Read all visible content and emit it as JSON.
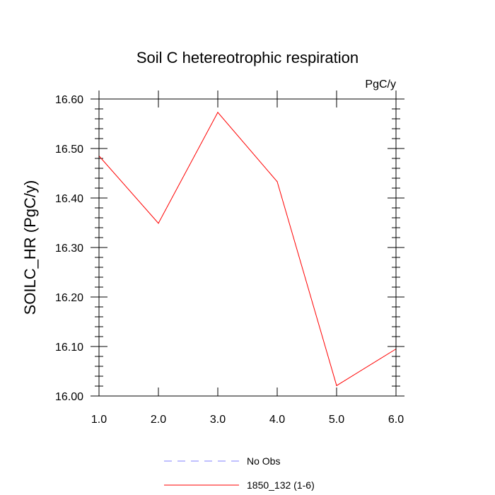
{
  "chart_data": {
    "type": "line",
    "title": "Soil C hetereotrophic respiration",
    "units_label": "PgC/y",
    "xlabel": "",
    "ylabel": "SOILC_HR  (PgC/y)",
    "xlim": [
      1.0,
      6.0
    ],
    "ylim": [
      16.0,
      16.6
    ],
    "x_ticks": [
      "1.0",
      "2.0",
      "3.0",
      "4.0",
      "5.0",
      "6.0"
    ],
    "x_tick_values": [
      1,
      2,
      3,
      4,
      5,
      6
    ],
    "y_ticks": [
      "16.00",
      "16.10",
      "16.20",
      "16.30",
      "16.40",
      "16.50",
      "16.60"
    ],
    "y_tick_values": [
      16.0,
      16.1,
      16.2,
      16.3,
      16.4,
      16.5,
      16.6
    ],
    "grid": false,
    "series": [
      {
        "name": "1850_132 (1-6)",
        "color": "#ff0000",
        "style": "solid",
        "x": [
          1,
          2,
          3,
          4,
          5,
          6
        ],
        "values": [
          16.485,
          16.349,
          16.573,
          16.433,
          16.021,
          16.095
        ]
      }
    ],
    "legend": [
      {
        "name": "No Obs",
        "color": "#8080ff",
        "style": "dashed"
      },
      {
        "name": "1850_132 (1-6)",
        "color": "#ff0000",
        "style": "solid"
      }
    ],
    "legend_position": "bottom"
  }
}
